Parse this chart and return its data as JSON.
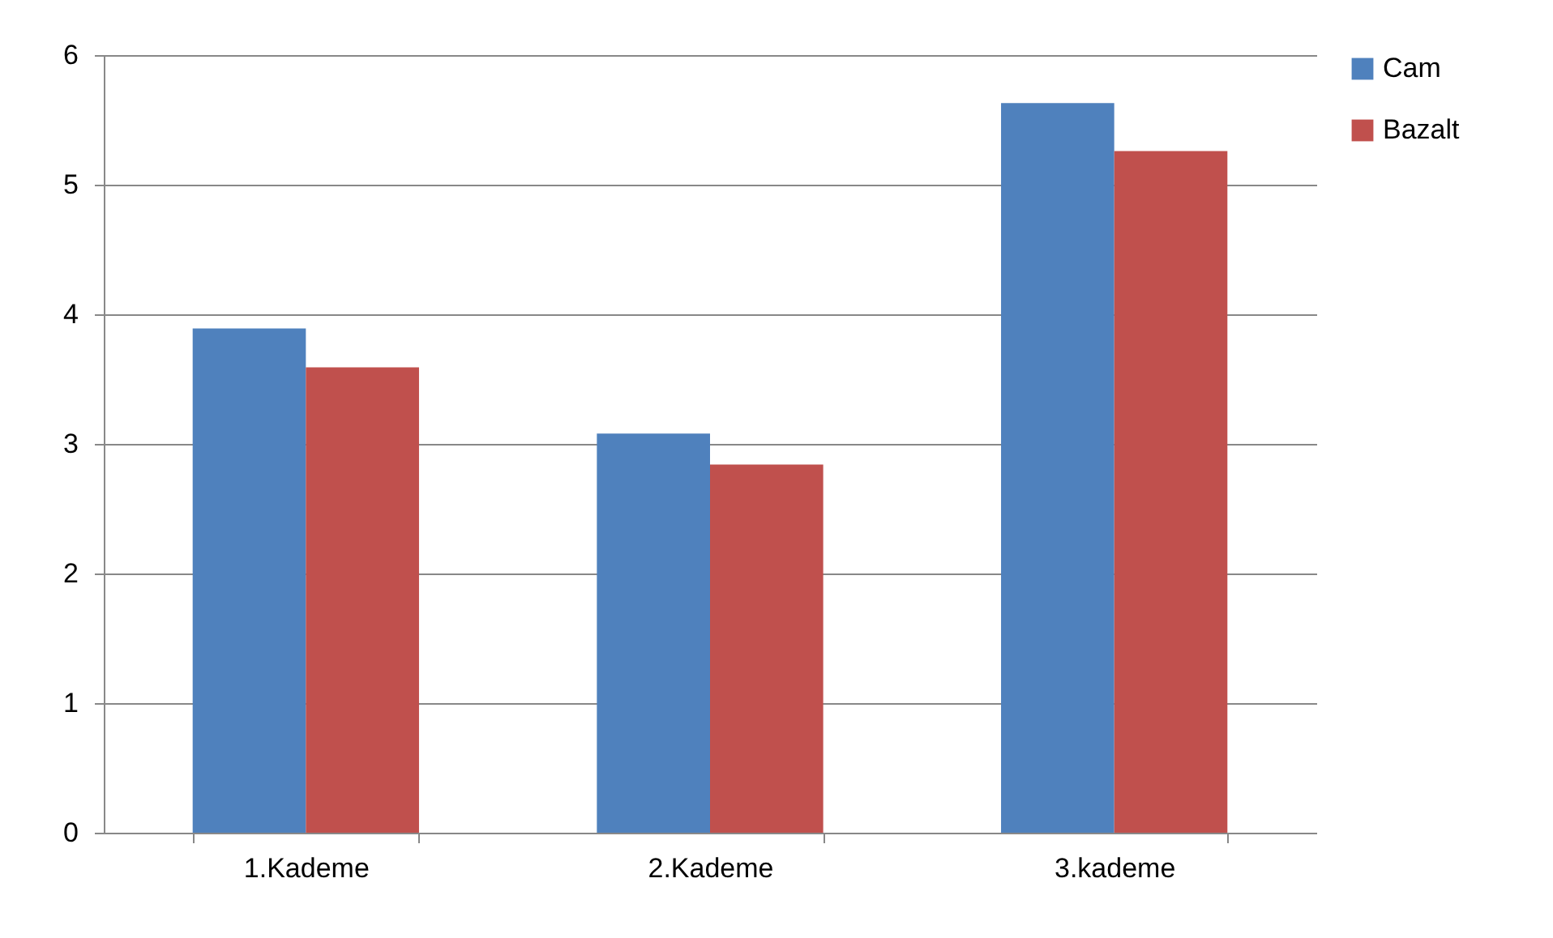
{
  "chart_data": {
    "type": "bar",
    "categories": [
      "1.Kademe",
      "2.Kademe",
      "3.kademe"
    ],
    "series": [
      {
        "name": "Cam",
        "color": "#4f81bd",
        "values": [
          3.89,
          3.08,
          5.63
        ]
      },
      {
        "name": "Bazalt",
        "color": "#c0504d",
        "values": [
          3.59,
          2.84,
          5.26
        ]
      }
    ],
    "ylim": [
      0,
      6
    ],
    "yticks": [
      0,
      1,
      2,
      3,
      4,
      5,
      6
    ],
    "grid": "y",
    "legend": "right"
  }
}
